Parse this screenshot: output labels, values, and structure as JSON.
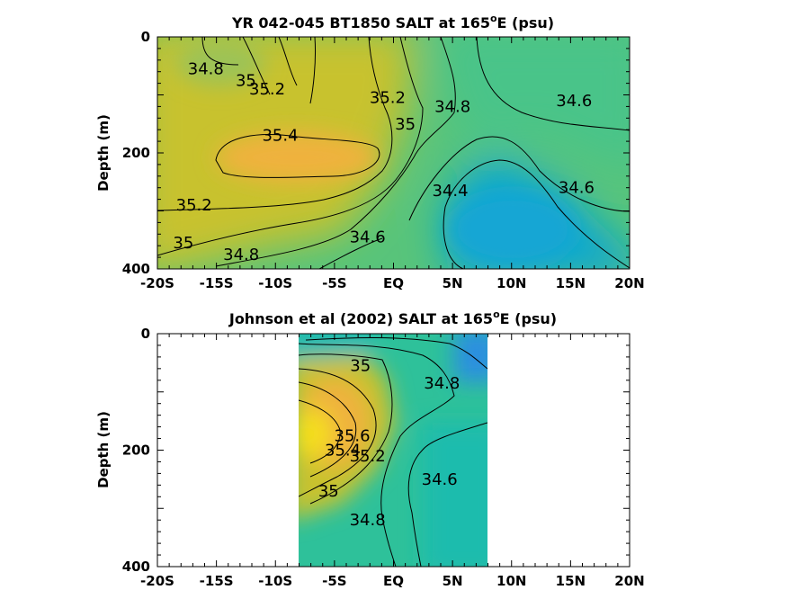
{
  "colors": {
    "s344": "#0fa8cf",
    "s346": "#16b9b3",
    "s348": "#2ec19a",
    "s350": "#58c47a",
    "s352": "#c8c22d",
    "s354": "#efb23c",
    "s356": "#f5de1f",
    "fresh": "#2a8fe0"
  },
  "chart_data": [
    {
      "type": "contour",
      "title_main": "YR 042-045 BT1850 SALT at 165",
      "title_sup": "o",
      "title_end": "E (psu)",
      "ylabel": "Depth (m)",
      "xlabel": "",
      "x_ticks": [
        "-20S",
        "-15S",
        "-10S",
        "-5S",
        "EQ",
        "5N",
        "10N",
        "15N",
        "20N"
      ],
      "y_ticks": [
        "0",
        "200",
        "400"
      ],
      "xlim": [
        -20,
        20
      ],
      "ylim": [
        400,
        0
      ],
      "y_reversed": true,
      "data_extent": [
        -20,
        20
      ],
      "contour_levels": [
        34.4,
        34.6,
        34.8,
        35,
        35.2,
        35.4
      ],
      "contour_labels": [
        {
          "text": "34.8",
          "x": -15.9,
          "y": 55
        },
        {
          "text": "35",
          "x": -12.5,
          "y": 75
        },
        {
          "text": "35.2",
          "x": -10.7,
          "y": 90
        },
        {
          "text": "35.2",
          "x": -0.5,
          "y": 105
        },
        {
          "text": "34.8",
          "x": 5,
          "y": 120
        },
        {
          "text": "34.6",
          "x": 15.3,
          "y": 110
        },
        {
          "text": "35",
          "x": 1,
          "y": 150
        },
        {
          "text": "35.4",
          "x": -9.6,
          "y": 170
        },
        {
          "text": "34.6",
          "x": 15.5,
          "y": 260
        },
        {
          "text": "34.4",
          "x": 4.8,
          "y": 265
        },
        {
          "text": "35.2",
          "x": -16.9,
          "y": 290
        },
        {
          "text": "34.6",
          "x": -2.2,
          "y": 345
        },
        {
          "text": "35",
          "x": -17.8,
          "y": 355
        },
        {
          "text": "34.8",
          "x": -12.9,
          "y": 375
        }
      ]
    },
    {
      "type": "contour",
      "title_main": "Johnson et al (2002) SALT at 165",
      "title_sup": "o",
      "title_end": "E (psu)",
      "ylabel": "Depth (m)",
      "xlabel": "",
      "x_ticks": [
        "-20S",
        "-15S",
        "-10S",
        "-5S",
        "EQ",
        "5N",
        "10N",
        "15N",
        "20N"
      ],
      "y_ticks": [
        "0",
        "200",
        "400"
      ],
      "xlim": [
        -20,
        20
      ],
      "ylim": [
        400,
        0
      ],
      "y_reversed": true,
      "data_extent": [
        -8,
        8
      ],
      "contour_levels": [
        34.6,
        34.8,
        35,
        35.2,
        35.4,
        35.6
      ],
      "contour_labels": [
        {
          "text": "35",
          "x": -2.8,
          "y": 55
        },
        {
          "text": "34.8",
          "x": 4.1,
          "y": 85
        },
        {
          "text": "35.6",
          "x": -3.5,
          "y": 175
        },
        {
          "text": "35.4",
          "x": -4.3,
          "y": 200
        },
        {
          "text": "35.2",
          "x": -2.2,
          "y": 210
        },
        {
          "text": "34.6",
          "x": 3.9,
          "y": 250
        },
        {
          "text": "35",
          "x": -5.5,
          "y": 270
        },
        {
          "text": "34.8",
          "x": -2.2,
          "y": 320
        }
      ]
    }
  ]
}
